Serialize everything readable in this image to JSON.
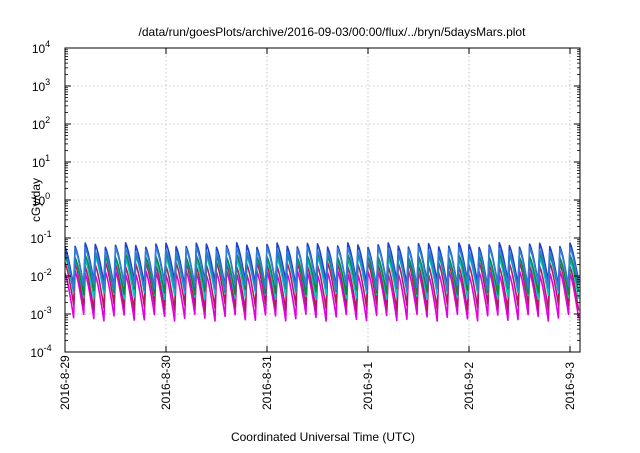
{
  "chart_data": {
    "type": "line",
    "title": "/data/run/goesPlots/archive/2016-09-03/00:00/flux/../bryn/5daysMars.plot",
    "xlabel": "Coordinated Universal Time (UTC)",
    "ylabel": "cGy/day",
    "y_scale": "log",
    "ylim": [
      0.0001,
      10000
    ],
    "xlim": [
      "2016-08-29",
      "2016-09-03T03:00"
    ],
    "grid": true,
    "legend": "none",
    "x_tick_labels": [
      "2016-8-29",
      "2016-8-30",
      "2016-8-31",
      "2016-9-1",
      "2016-9-2",
      "2016-9-3"
    ],
    "y_ticks": [
      {
        "base": "10",
        "exp": "-4"
      },
      {
        "base": "10",
        "exp": "-3"
      },
      {
        "base": "10",
        "exp": "-2"
      },
      {
        "base": "10",
        "exp": "-1"
      },
      {
        "base": "10",
        "exp": "0"
      },
      {
        "base": "10",
        "exp": "1"
      },
      {
        "base": "10",
        "exp": "2"
      },
      {
        "base": "10",
        "exp": "3"
      },
      {
        "base": "10",
        "exp": "4"
      }
    ],
    "cycles_per_day": 10,
    "series": [
      {
        "color": "#e000e0",
        "peak": 0.012,
        "trough": 0.0008
      },
      {
        "color": "#b21c5e",
        "peak": 0.02,
        "trough": 0.0015
      },
      {
        "color": "#00c8c8",
        "peak": 0.03,
        "trough": 0.003
      },
      {
        "color": "#0a8a3a",
        "peak": 0.035,
        "trough": 0.004
      },
      {
        "color": "#1f3fd0",
        "peak": 0.065,
        "trough": 0.006
      },
      {
        "color": "#2f7fd8",
        "peak": 0.05,
        "trough": 0.005
      }
    ]
  }
}
